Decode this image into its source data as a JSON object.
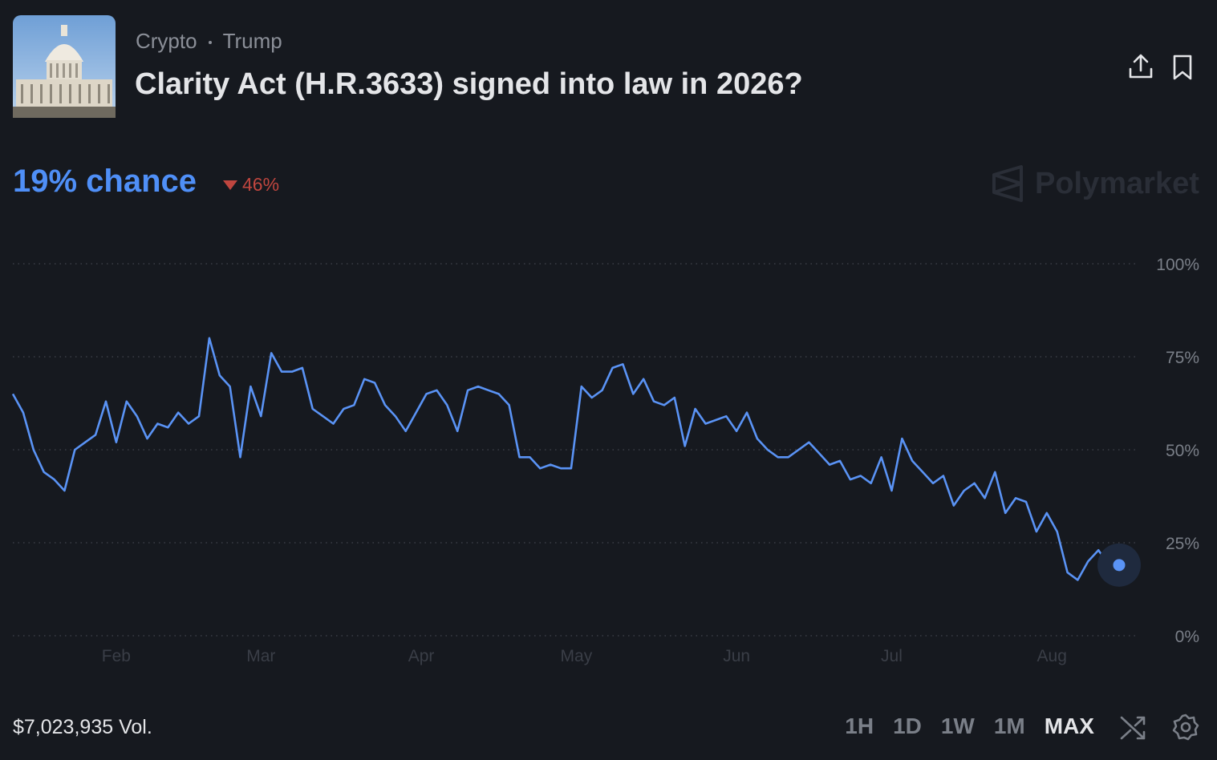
{
  "header": {
    "categories": [
      "Crypto",
      "Trump"
    ],
    "title": "Clarity Act (H.R.3633) signed into law in 2026?",
    "chance": "19% chance",
    "change": "46%",
    "brand": "Polymarket"
  },
  "chart_data": {
    "type": "line",
    "color": "#5a93f5",
    "grid": true,
    "values": [
      65,
      60,
      50,
      44,
      42,
      39,
      50,
      52,
      54,
      63,
      52,
      63,
      59,
      53,
      57,
      56,
      60,
      57,
      59,
      80,
      70,
      67,
      48,
      67,
      59,
      76,
      71,
      71,
      72,
      61,
      59,
      57,
      61,
      62,
      69,
      68,
      62,
      59,
      55,
      60,
      65,
      66,
      62,
      55,
      66,
      67,
      66,
      65,
      62,
      48,
      48,
      45,
      46,
      45,
      45,
      67,
      64,
      66,
      72,
      73,
      65,
      69,
      63,
      62,
      64,
      51,
      61,
      57,
      58,
      59,
      55,
      60,
      53,
      50,
      48,
      48,
      50,
      52,
      49,
      46,
      47,
      42,
      43,
      41,
      48,
      39,
      53,
      47,
      44,
      41,
      43,
      35,
      39,
      41,
      37,
      44,
      33,
      37,
      36,
      28,
      33,
      28,
      17,
      15,
      20,
      23,
      19,
      19
    ],
    "xlim": [
      0,
      107
    ],
    "xticks": [
      {
        "value": 10,
        "label": "Feb"
      },
      {
        "value": 24,
        "label": "Mar"
      },
      {
        "value": 39.5,
        "label": "Apr"
      },
      {
        "value": 54.5,
        "label": "May"
      },
      {
        "value": 70,
        "label": "Jun"
      },
      {
        "value": 85,
        "label": "Jul"
      },
      {
        "value": 100.5,
        "label": "Aug"
      }
    ],
    "ylim": [
      0,
      100
    ],
    "yticks": [
      {
        "value": 0,
        "label": "0%"
      },
      {
        "value": 25,
        "label": "25%"
      },
      {
        "value": 50,
        "label": "50%"
      },
      {
        "value": 75,
        "label": "75%"
      },
      {
        "value": 100,
        "label": "100%"
      }
    ]
  },
  "footer": {
    "volume": "$7,023,935 Vol.",
    "ranges": [
      "1H",
      "1D",
      "1W",
      "1M",
      "MAX"
    ]
  }
}
